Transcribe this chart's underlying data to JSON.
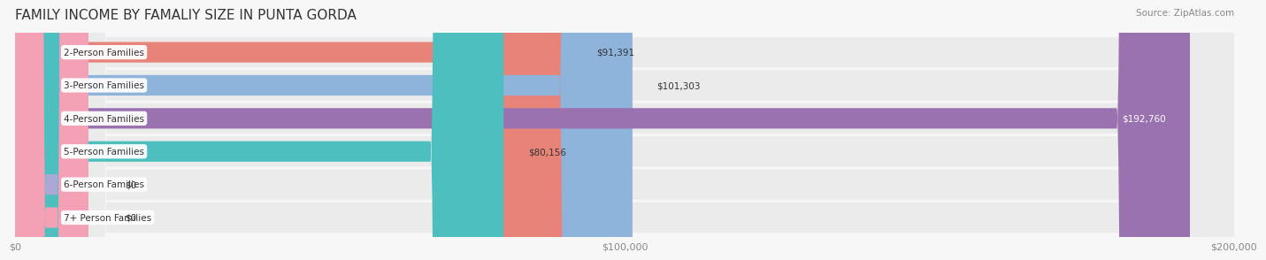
{
  "title": "FAMILY INCOME BY FAMALIY SIZE IN PUNTA GORDA",
  "source": "Source: ZipAtlas.com",
  "categories": [
    "2-Person Families",
    "3-Person Families",
    "4-Person Families",
    "5-Person Families",
    "6-Person Families",
    "7+ Person Families"
  ],
  "values": [
    91391,
    101303,
    192760,
    80156,
    0,
    0
  ],
  "bar_colors": [
    "#E8837A",
    "#8EB4DC",
    "#9B72B0",
    "#4DBFBF",
    "#A9A9D4",
    "#F4A0B5"
  ],
  "label_colors": [
    "#555555",
    "#555555",
    "#ffffff",
    "#555555",
    "#555555",
    "#555555"
  ],
  "bg_row_colors": [
    "#f0f0f0",
    "#f0f0f0",
    "#f0f0f0",
    "#f0f0f0",
    "#f0f0f0",
    "#f0f0f0"
  ],
  "xlim": [
    0,
    200000
  ],
  "xticks": [
    0,
    100000,
    200000
  ],
  "xtick_labels": [
    "$0",
    "$100,000",
    "$200,000"
  ],
  "value_labels": [
    "$91,391",
    "$101,303",
    "$192,760",
    "$80,156",
    "$0",
    "$0"
  ],
  "title_fontsize": 11,
  "bar_height": 0.62,
  "background_color": "#f7f7f7",
  "row_bg_color": "#ececec"
}
